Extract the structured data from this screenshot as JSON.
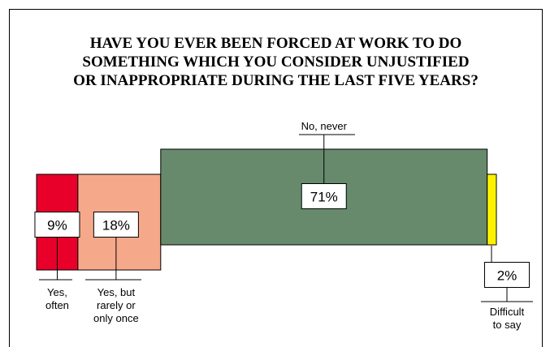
{
  "chart_data": {
    "type": "bar",
    "title": "HAVE YOU EVER BEEN FORCED AT WORK TO DO\nSOMETHING WHICH YOU CONSIDER UNJUSTIFIED\nOR INAPPROPRIATE DURING THE LAST FIVE YEARS?",
    "categories": [
      "Yes, often",
      "Yes, but rarely or only once",
      "No, never",
      "Difficult to say"
    ],
    "category_lines": [
      [
        "Yes,",
        "often"
      ],
      [
        "Yes, but",
        "rarely or",
        "only once"
      ],
      [
        "No, never"
      ],
      [
        "Difficult",
        "to say"
      ]
    ],
    "values": [
      9,
      18,
      71,
      2
    ],
    "value_labels": [
      "9%",
      "18%",
      "71%",
      "2%"
    ],
    "colors": [
      "#e8002a",
      "#f6a98a",
      "#678a6d",
      "#fff200"
    ],
    "unit": "%",
    "stacked_horizontal": true,
    "legend": "none",
    "grid": false
  }
}
